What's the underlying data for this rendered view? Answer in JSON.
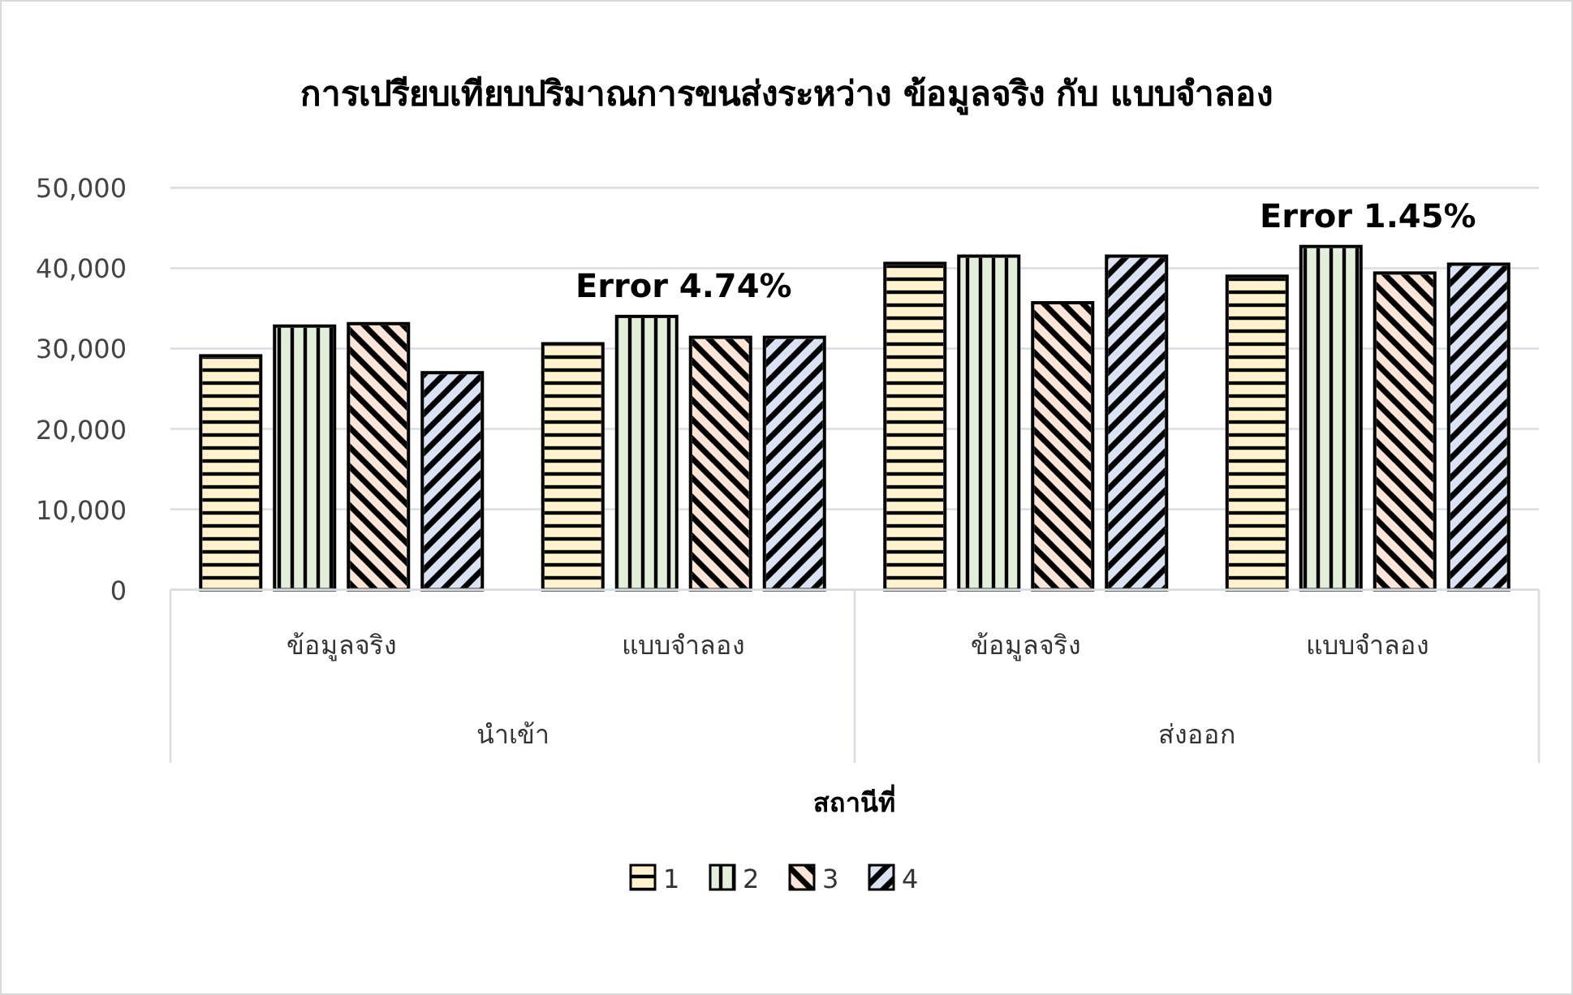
{
  "chart_data": {
    "type": "bar",
    "title": "การเปรียบเทียบปริมาณการขนส่งระหว่าง ข้อมูลจริง กับ แบบจำลอง",
    "xlabel": "สถานีที่",
    "categories": [
      "ข้อมูลจริง",
      "แบบจำลอง",
      "ข้อมูลจริง",
      "แบบจำลอง"
    ],
    "series": [
      {
        "name": "1",
        "color": "#fff2cc",
        "values": [
          29100,
          30600,
          40600,
          39000
        ]
      },
      {
        "name": "2",
        "color": "#e2efda",
        "values": [
          32800,
          34000,
          41500,
          42700
        ]
      },
      {
        "name": "3",
        "color": "#fce4d6",
        "values": [
          33100,
          31400,
          35700,
          39400
        ]
      },
      {
        "name": "4",
        "color": "#dae3f3",
        "values": [
          27000,
          31400,
          41500,
          40500
        ]
      }
    ],
    "annotations": [
      "นำเข้า",
      "ส่งออก",
      "Error 4.74%",
      "Error 1.45%"
    ],
    "ylim": [
      0,
      50000
    ],
    "yticks": [
      {
        "value": 0,
        "label": "0"
      },
      {
        "value": 10000,
        "label": "10,000"
      },
      {
        "value": 20000,
        "label": "20,000"
      },
      {
        "value": 30000,
        "label": "30,000"
      },
      {
        "value": 40000,
        "label": "40,000"
      },
      {
        "value": 50000,
        "label": "50,000"
      }
    ],
    "grid": "y",
    "legend": "bottom"
  }
}
